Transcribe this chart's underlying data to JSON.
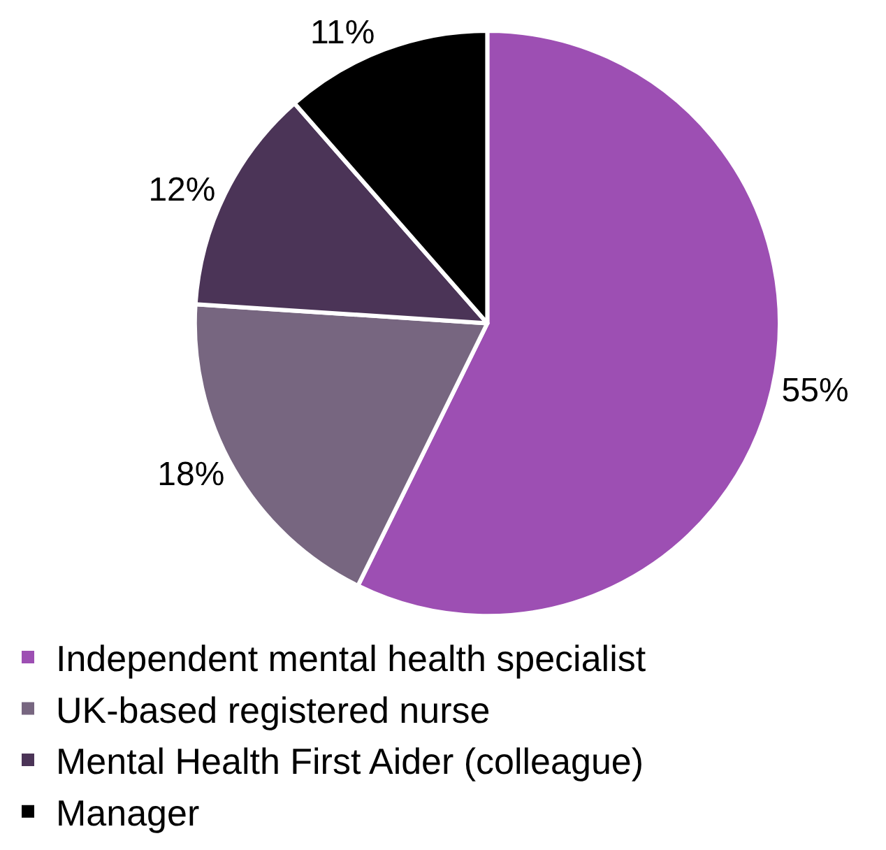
{
  "chart_data": {
    "type": "pie",
    "categories": [
      "Independent mental health specialist",
      "UK-based registered nurse",
      "Mental Health First Aider (colleague)",
      "Manager"
    ],
    "values": [
      55,
      18,
      12,
      11
    ],
    "value_labels": [
      "55%",
      "18%",
      "12%",
      "11%"
    ],
    "colors": [
      "#9d4fb3",
      "#776680",
      "#4b3457",
      "#000000"
    ],
    "legend": "bottom"
  }
}
